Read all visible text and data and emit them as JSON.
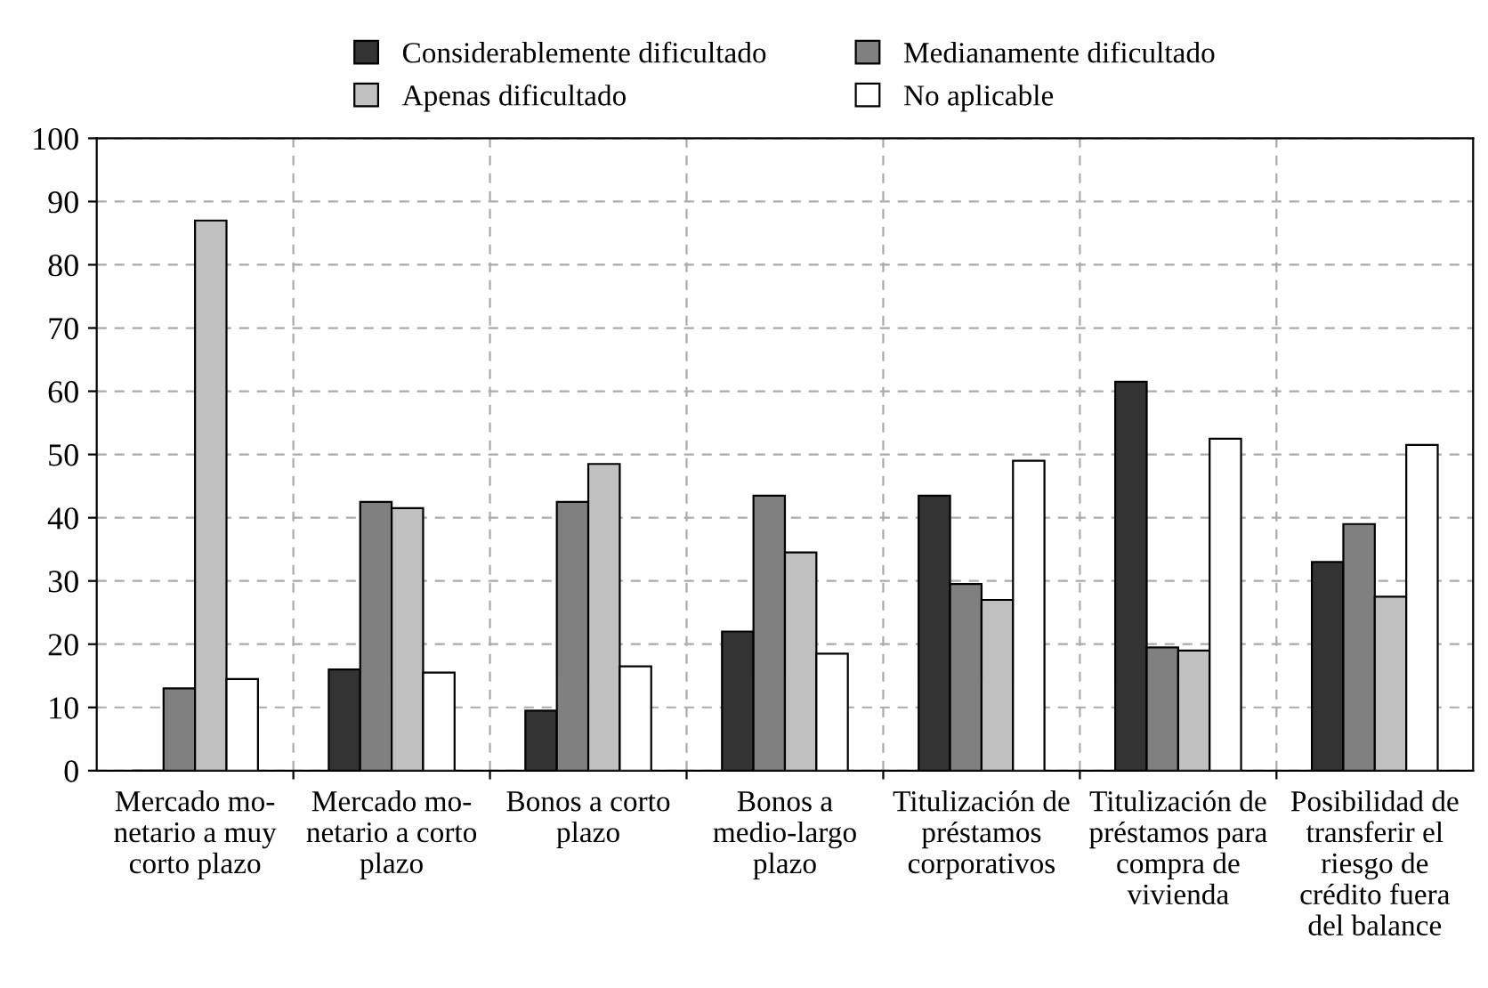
{
  "chart_data": {
    "type": "bar",
    "categories": [
      "Mercado mo-\nnetario a muy\ncorto plazo",
      "Mercado mo-\nnetario a corto\nplazo",
      "Bonos a corto\nplazo",
      "Bonos a\nmedio-largo\nplazo",
      "Titulización de\npréstamos\ncorporativos",
      "Titulización de\npréstamos para\ncompra de\nvivienda",
      "Posibilidad de\ntransferir el\nriesgo de\ncrédito fuera\ndel balance"
    ],
    "series": [
      {
        "name": "Considerablemente dificultado",
        "color": "#333333",
        "values": [
          0,
          16,
          9.5,
          22,
          43.5,
          61.5,
          33
        ]
      },
      {
        "name": "Medianamente dificultado",
        "color": "#808080",
        "values": [
          13,
          42.5,
          42.5,
          43.5,
          29.5,
          19.5,
          39
        ]
      },
      {
        "name": "Apenas dificultado",
        "color": "#c0c0c0",
        "values": [
          87,
          41.5,
          48.5,
          34.5,
          27,
          19,
          27.5
        ]
      },
      {
        "name": "No aplicable",
        "color": "#ffffff",
        "values": [
          14.5,
          15.5,
          16.5,
          18.5,
          49,
          52.5,
          51.5
        ]
      }
    ],
    "ylim": [
      0,
      100
    ],
    "yticks": [
      0,
      10,
      20,
      30,
      40,
      50,
      60,
      70,
      80,
      90,
      100
    ],
    "grid": true,
    "legend": "top"
  }
}
